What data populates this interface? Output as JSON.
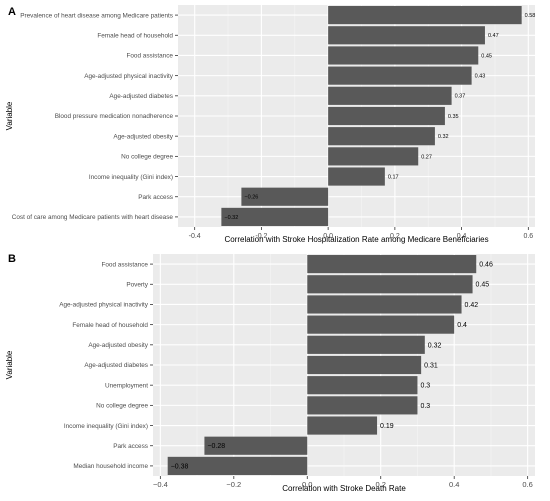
{
  "chart_data": [
    {
      "panel": "A",
      "type": "bar",
      "orientation": "horizontal",
      "xlabel": "Correlation with Stroke Hospitalization Rate among Medicare Beneficiaries",
      "ylabel": "Variable",
      "xlim": [
        -0.45,
        0.62
      ],
      "xticks": [
        -0.4,
        -0.2,
        0.0,
        0.2,
        0.4,
        0.6
      ],
      "xtick_labels": [
        "-0.4",
        "-0.2",
        "0.0",
        "0.2",
        "0.4",
        "0.6"
      ],
      "grid": true,
      "bar_color": "#595959",
      "panel_background": "#ebebeb",
      "categories": [
        "Prevalence of heart disease among Medicare patients",
        "Female head of household",
        "Food assistance",
        "Age-adjusted physical inactivity",
        "Age-adjusted diabetes",
        "Blood pressure medication nonadherence",
        "Age-adjusted obesity",
        "No college degree",
        "Income inequality (Gini index)",
        "Park access",
        "Cost of care among Medicare patients with heart disease"
      ],
      "values": [
        0.58,
        0.47,
        0.45,
        0.43,
        0.37,
        0.35,
        0.32,
        0.27,
        0.17,
        -0.26,
        -0.32
      ],
      "value_labels": [
        "0.58",
        "0.47",
        "0.45",
        "0.43",
        "0.37",
        "0.35",
        "0.32",
        "0.27",
        "0.17",
        "−0.26",
        "−0.32"
      ]
    },
    {
      "panel": "B",
      "type": "bar",
      "orientation": "horizontal",
      "xlabel": "Correlation with Stroke Death Rate",
      "ylabel": "Variable",
      "xlim": [
        -0.42,
        0.62
      ],
      "xticks": [
        -0.4,
        -0.2,
        0.0,
        0.2,
        0.4,
        0.6
      ],
      "xtick_labels": [
        "−0.4",
        "−0.2",
        "0.0",
        "0.2",
        "0.4",
        "0.6"
      ],
      "grid": true,
      "bar_color": "#595959",
      "panel_background": "#ebebeb",
      "categories": [
        "Food assistance",
        "Poverty",
        "Age-adjusted physical inactivity",
        "Female head of household",
        "Age-adjusted obesity",
        "Age-adjusted diabetes",
        "Unemployment",
        "No college degree",
        "Income inequality (Gini index)",
        "Park access",
        "Median household income"
      ],
      "values": [
        0.46,
        0.45,
        0.42,
        0.4,
        0.32,
        0.31,
        0.3,
        0.3,
        0.19,
        -0.28,
        -0.38
      ],
      "value_labels": [
        "0.46",
        "0.45",
        "0.42",
        "0.4",
        "0.32",
        "0.31",
        "0.3",
        "0.3",
        "0.19",
        "−0.28",
        "−0.38"
      ]
    }
  ]
}
